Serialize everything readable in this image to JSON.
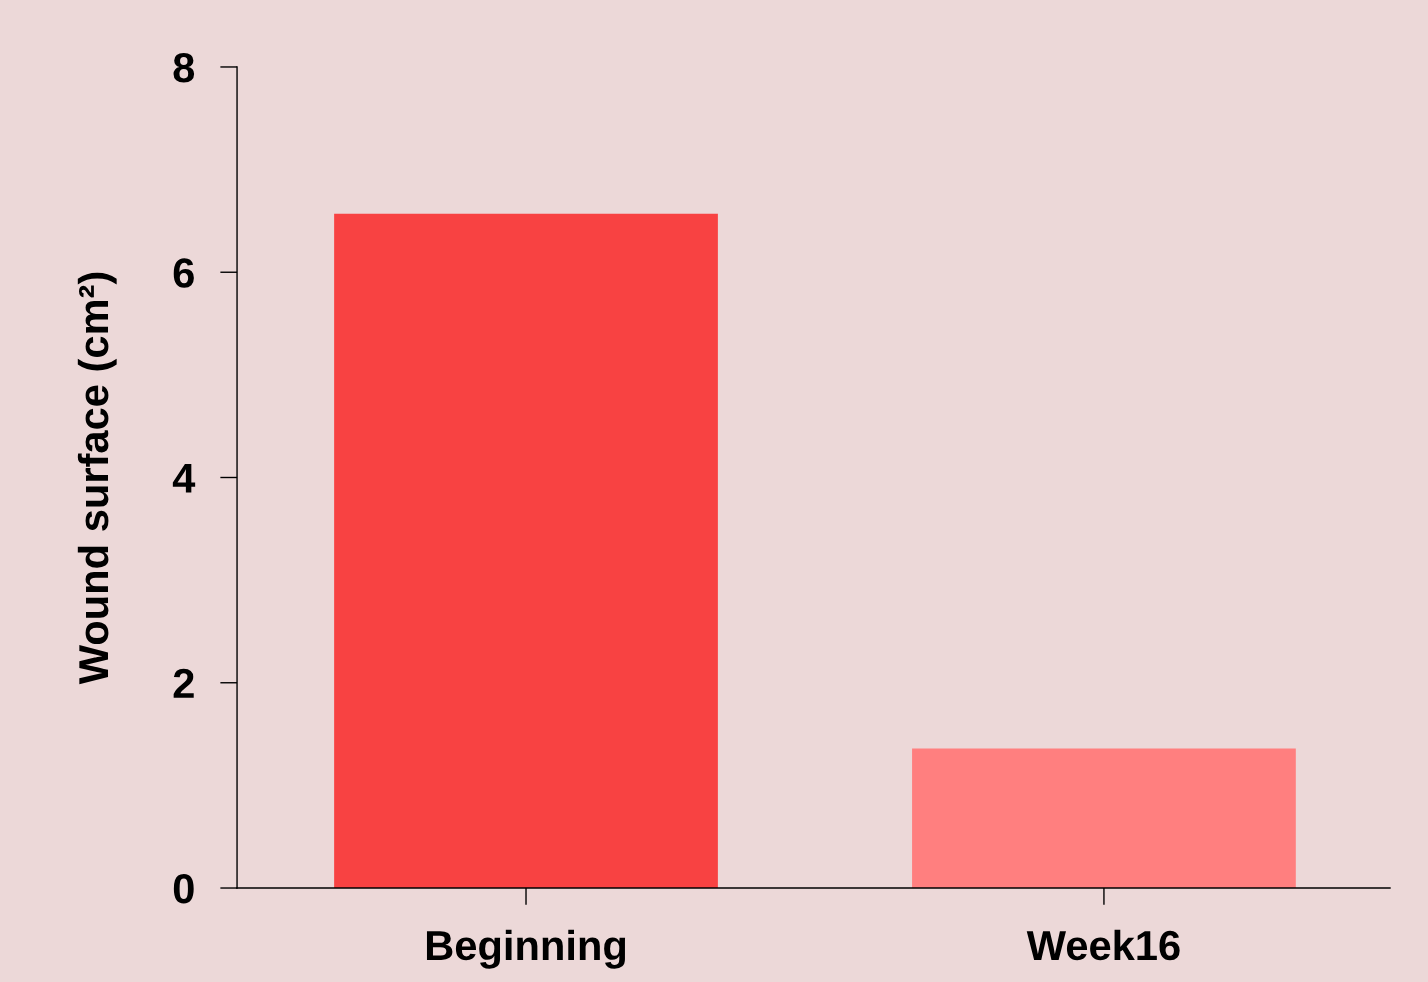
{
  "chart_data": {
    "type": "bar",
    "ylabel": "Wound surface (cm²)",
    "categories": [
      "Beginning",
      "Week16"
    ],
    "values": [
      6.57,
      1.36
    ],
    "colors": [
      "#f84242",
      "#ff7f7f"
    ],
    "ylim": [
      0,
      8
    ],
    "yticks": [
      0,
      2,
      4,
      6,
      8
    ],
    "grid": false,
    "legend": false
  }
}
